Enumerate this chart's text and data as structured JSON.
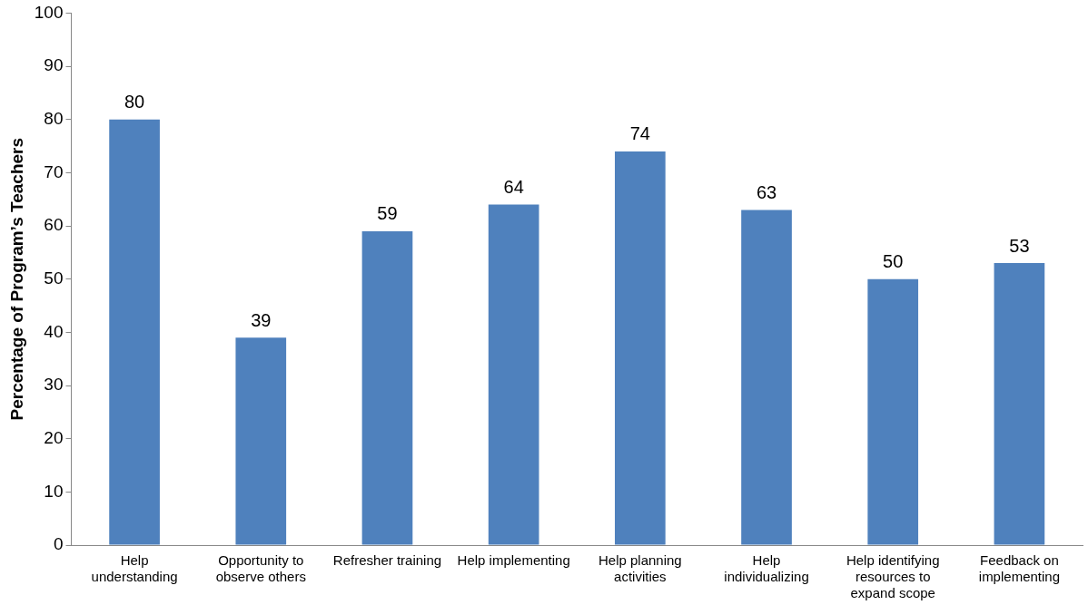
{
  "chart_data": {
    "type": "bar",
    "ylabel": "Percentage of Program’s Teachers",
    "categories": [
      "Help understanding",
      "Opportunity to observe others",
      "Refresher training",
      "Help implementing",
      "Help planning activities",
      "Help individualizing",
      "Help identifying resources to expand scope",
      "Feedback on implementing"
    ],
    "values": [
      80,
      39,
      59,
      64,
      74,
      63,
      50,
      53
    ],
    "color": "#4f81bd",
    "ylim": [
      0,
      100
    ],
    "yticks": [
      0,
      10,
      20,
      30,
      40,
      50,
      60,
      70,
      80,
      90,
      100
    ],
    "grid": false,
    "legend": false,
    "data_labels": true
  }
}
